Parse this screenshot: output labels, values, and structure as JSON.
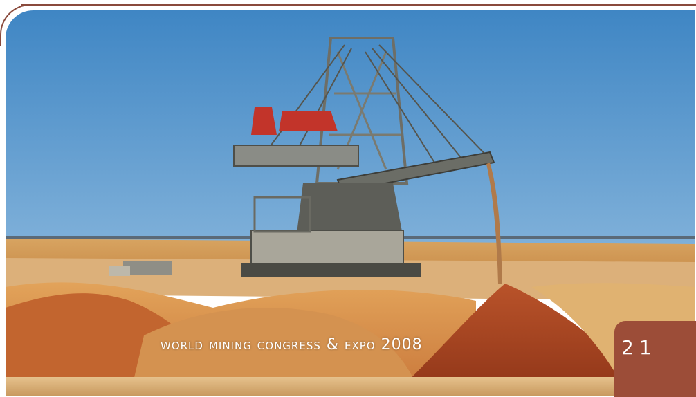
{
  "caption": "WORLD MINING CONGRESS & EXPO 2008",
  "page_number": "21",
  "colors": {
    "frame_rule": "#8a4a3c",
    "badge": "#9c4d38",
    "sky": "#4f8fc6",
    "sand": "#d9a05f"
  },
  "image": {
    "subject": "bucket-wheel-reclaimer-mining-machine"
  }
}
